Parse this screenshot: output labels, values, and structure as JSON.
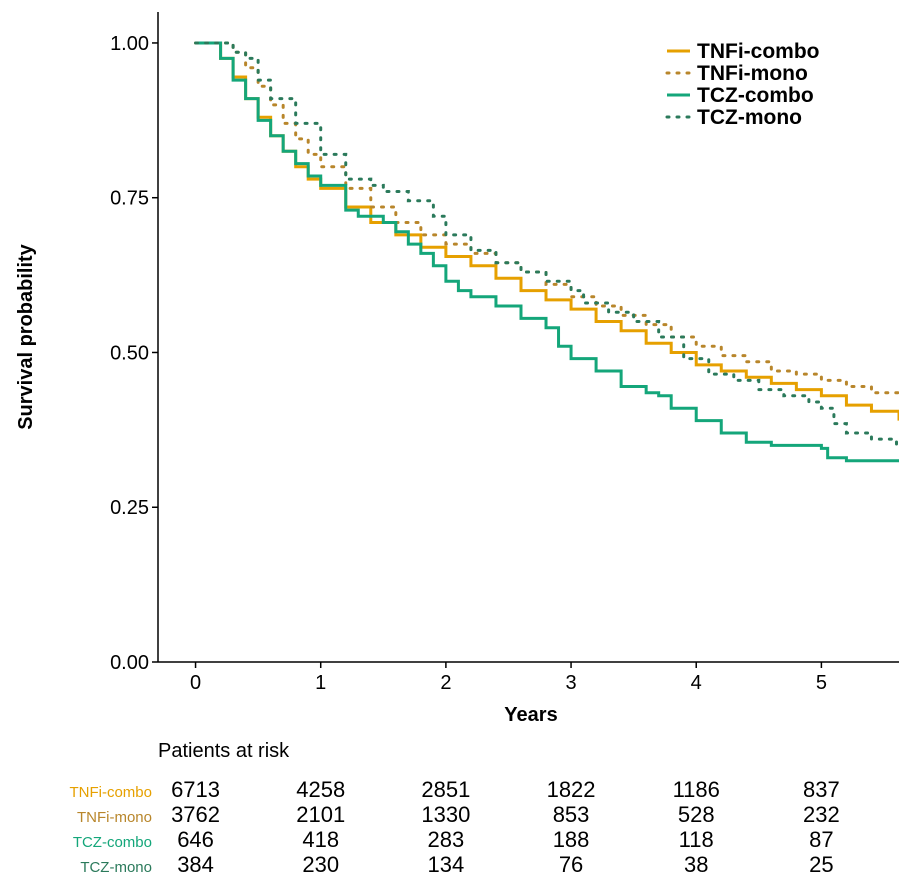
{
  "chart_data": {
    "type": "line",
    "title": "",
    "xlabel": "Years",
    "ylabel": "Survival probability",
    "xlim": [
      -0.3,
      5.62
    ],
    "ylim": [
      0,
      1.05
    ],
    "x_ticks": [
      "0",
      "1",
      "2",
      "3",
      "4",
      "5"
    ],
    "y_ticks": [
      "0.00",
      "0.25",
      "0.50",
      "0.75",
      "1.00"
    ],
    "grid": false,
    "legend_position": "top-right",
    "series": [
      {
        "name": "TNFi-combo",
        "color": "#E6A000",
        "dash": "solid",
        "x": [
          0,
          0.1,
          0.2,
          0.3,
          0.4,
          0.5,
          0.6,
          0.7,
          0.8,
          0.9,
          1.0,
          1.2,
          1.4,
          1.6,
          1.8,
          2.0,
          2.2,
          2.4,
          2.6,
          2.8,
          3.0,
          3.2,
          3.4,
          3.6,
          3.8,
          4.0,
          4.2,
          4.4,
          4.6,
          4.8,
          5.0,
          5.2,
          5.4,
          5.62
        ],
        "y": [
          1.0,
          1.0,
          0.975,
          0.945,
          0.91,
          0.88,
          0.85,
          0.825,
          0.8,
          0.78,
          0.765,
          0.735,
          0.71,
          0.69,
          0.67,
          0.655,
          0.64,
          0.62,
          0.6,
          0.585,
          0.57,
          0.55,
          0.535,
          0.515,
          0.5,
          0.48,
          0.47,
          0.46,
          0.45,
          0.44,
          0.43,
          0.415,
          0.405,
          0.39
        ]
      },
      {
        "name": "TNFi-mono",
        "color": "#B8862B",
        "dash": "dotted",
        "x": [
          0,
          0.15,
          0.3,
          0.4,
          0.5,
          0.6,
          0.7,
          0.8,
          0.9,
          1.0,
          1.2,
          1.4,
          1.6,
          1.8,
          2.0,
          2.2,
          2.4,
          2.6,
          2.8,
          3.0,
          3.2,
          3.4,
          3.6,
          3.8,
          4.0,
          4.2,
          4.4,
          4.6,
          4.8,
          5.0,
          5.2,
          5.4,
          5.62
        ],
        "y": [
          1.0,
          1.0,
          0.985,
          0.96,
          0.93,
          0.9,
          0.87,
          0.845,
          0.82,
          0.8,
          0.765,
          0.735,
          0.71,
          0.69,
          0.675,
          0.66,
          0.645,
          0.63,
          0.61,
          0.59,
          0.575,
          0.56,
          0.545,
          0.525,
          0.51,
          0.495,
          0.485,
          0.47,
          0.465,
          0.455,
          0.445,
          0.435,
          0.43
        ]
      },
      {
        "name": "TCZ-combo",
        "color": "#14A67A",
        "dash": "solid",
        "x": [
          0,
          0.1,
          0.2,
          0.3,
          0.4,
          0.5,
          0.6,
          0.7,
          0.8,
          0.9,
          1.0,
          1.2,
          1.3,
          1.5,
          1.6,
          1.7,
          1.8,
          1.9,
          2.0,
          2.1,
          2.2,
          2.4,
          2.6,
          2.8,
          2.9,
          3.0,
          3.2,
          3.4,
          3.6,
          3.7,
          3.8,
          4.0,
          4.2,
          4.4,
          4.6,
          5.0,
          5.05,
          5.2,
          5.62
        ],
        "y": [
          1.0,
          1.0,
          0.975,
          0.94,
          0.91,
          0.875,
          0.85,
          0.825,
          0.805,
          0.785,
          0.77,
          0.73,
          0.72,
          0.71,
          0.695,
          0.675,
          0.66,
          0.64,
          0.615,
          0.6,
          0.59,
          0.575,
          0.555,
          0.54,
          0.51,
          0.49,
          0.47,
          0.445,
          0.435,
          0.43,
          0.41,
          0.39,
          0.37,
          0.355,
          0.35,
          0.345,
          0.33,
          0.325,
          0.325
        ]
      },
      {
        "name": "TCZ-mono",
        "color": "#2B7A5B",
        "dash": "dotted",
        "x": [
          0,
          0.15,
          0.3,
          0.4,
          0.5,
          0.6,
          0.8,
          1.0,
          1.2,
          1.4,
          1.5,
          1.7,
          1.9,
          2.0,
          2.2,
          2.4,
          2.6,
          2.8,
          3.0,
          3.1,
          3.3,
          3.5,
          3.7,
          3.9,
          4.1,
          4.3,
          4.5,
          4.7,
          4.9,
          5.0,
          5.1,
          5.2,
          5.4,
          5.6
        ],
        "y": [
          1.0,
          1.0,
          0.985,
          0.975,
          0.94,
          0.91,
          0.87,
          0.82,
          0.78,
          0.77,
          0.76,
          0.745,
          0.72,
          0.69,
          0.665,
          0.645,
          0.63,
          0.615,
          0.6,
          0.58,
          0.565,
          0.55,
          0.525,
          0.49,
          0.465,
          0.455,
          0.44,
          0.43,
          0.42,
          0.41,
          0.385,
          0.37,
          0.36,
          0.34
        ]
      }
    ]
  },
  "risk_table": {
    "title": "Patients at risk",
    "rows": [
      {
        "name": "TNFi-combo",
        "color": "#E6A000",
        "values": [
          "6713",
          "4258",
          "2851",
          "1822",
          "1186",
          "837"
        ]
      },
      {
        "name": "TNFi-mono",
        "color": "#B8862B",
        "values": [
          "3762",
          "2101",
          "1330",
          "853",
          "528",
          "232"
        ]
      },
      {
        "name": "TCZ-combo",
        "color": "#14A67A",
        "values": [
          "646",
          "418",
          "283",
          "188",
          "118",
          "87"
        ]
      },
      {
        "name": "TCZ-mono",
        "color": "#2B7A5B",
        "values": [
          "384",
          "230",
          "134",
          "76",
          "38",
          "25"
        ]
      }
    ]
  }
}
